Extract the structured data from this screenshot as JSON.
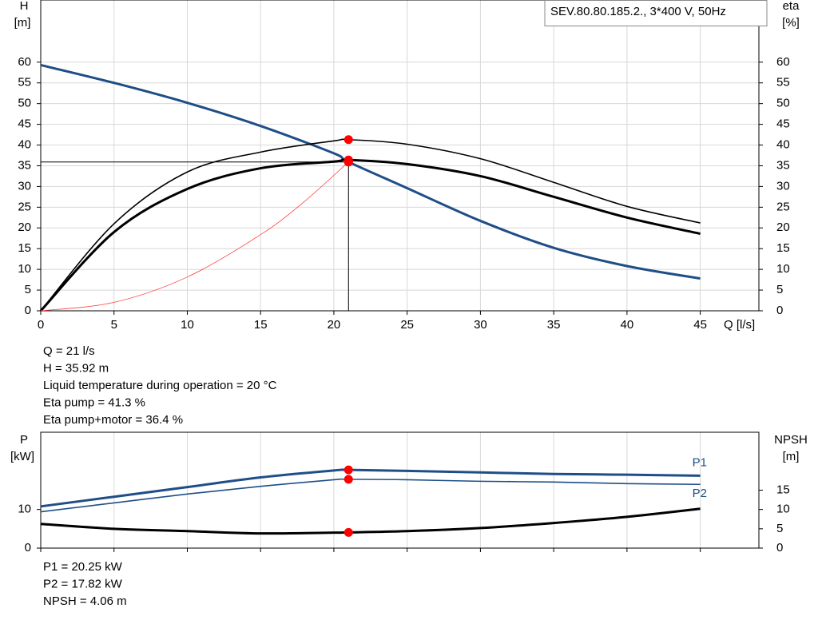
{
  "chart_data": [
    {
      "type": "line",
      "x_label": "Q [l/s]",
      "y_label": [
        "H",
        "[m]"
      ],
      "y2_label": [
        "eta",
        "[%]"
      ],
      "legend": "SEV.80.80.185.2., 3*400 V, 50Hz",
      "xlim": [
        0,
        49
      ],
      "xticks": [
        0,
        5,
        10,
        15,
        20,
        25,
        30,
        35,
        40,
        45
      ],
      "ylim": [
        0,
        75
      ],
      "yticks": [
        0,
        5,
        10,
        15,
        20,
        25,
        30,
        35,
        40,
        45,
        50,
        55,
        60
      ],
      "y2lim": [
        0,
        75
      ],
      "y2ticks": [
        0,
        5,
        10,
        15,
        20,
        25,
        30,
        35,
        40,
        45,
        50,
        55,
        60
      ],
      "x": [
        0,
        5,
        10,
        15,
        20,
        21,
        25,
        30,
        35,
        40,
        45
      ],
      "duty": {
        "x": 21
      },
      "series": [
        {
          "color": "#1f4e87",
          "style": "thick",
          "crosshair": true,
          "values": [
            59.3,
            55,
            50.2,
            44.6,
            38,
            35.92,
            29.6,
            21.7,
            15.2,
            10.8,
            7.8
          ]
        },
        {
          "color": "#000000",
          "style": "thin",
          "axis": "y2",
          "values": [
            0,
            21,
            33.5,
            38.3,
            41,
            41.3,
            40.2,
            36.7,
            31,
            25.2,
            21.2
          ]
        },
        {
          "color": "#000000",
          "style": "thick",
          "axis": "y2",
          "values": [
            0,
            19,
            29.4,
            34.4,
            36,
            36.4,
            35.4,
            32.5,
            27.5,
            22.5,
            18.6
          ]
        },
        {
          "color": "#ff4040",
          "style": "hair",
          "x": [
            0,
            5,
            10,
            15,
            18,
            21
          ],
          "values": [
            0,
            2.04,
            8.16,
            18.37,
            26.4,
            35.92
          ]
        }
      ]
    },
    {
      "type": "line",
      "y_label": [
        "P",
        "[kW]"
      ],
      "y2_label": [
        "NPSH",
        "[m]"
      ],
      "xlim": [
        0,
        49
      ],
      "xticks": [
        0,
        5,
        10,
        15,
        20,
        25,
        30,
        35,
        40,
        45
      ],
      "ylim": [
        0,
        30
      ],
      "yticks": [
        0,
        10
      ],
      "y2lim": [
        0,
        30
      ],
      "y2ticks": [
        0,
        5,
        10,
        15
      ],
      "x": [
        0,
        5,
        10,
        15,
        20,
        21,
        25,
        30,
        35,
        40,
        45
      ],
      "duty": {
        "x": 21
      },
      "series": [
        {
          "name": "P1",
          "color": "#1f4e87",
          "style": "thick",
          "values": [
            10.8,
            13.3,
            15.8,
            18.3,
            20.1,
            20.25,
            20,
            19.6,
            19.2,
            19,
            18.75
          ]
        },
        {
          "name": "P2",
          "color": "#1f4e87",
          "style": "thin",
          "values": [
            9.4,
            11.7,
            14,
            16,
            17.7,
            17.82,
            17.7,
            17.3,
            17.1,
            16.7,
            16.5
          ]
        },
        {
          "color": "#000000",
          "style": "thick",
          "axis": "y2",
          "values": [
            6.25,
            5,
            4.4,
            3.8,
            4.0,
            4.06,
            4.4,
            5.2,
            6.5,
            8.1,
            10.2
          ]
        }
      ]
    }
  ],
  "info_upper": [
    "Q = 21 l/s",
    "H = 35.92 m",
    "Liquid temperature during operation = 20 °C",
    "Eta pump = 41.3 %",
    "Eta pump+motor = 36.4 %"
  ],
  "info_lower": [
    "P1 = 20.25 kW",
    "P2 = 17.82 kW",
    "NPSH = 4.06 m"
  ]
}
